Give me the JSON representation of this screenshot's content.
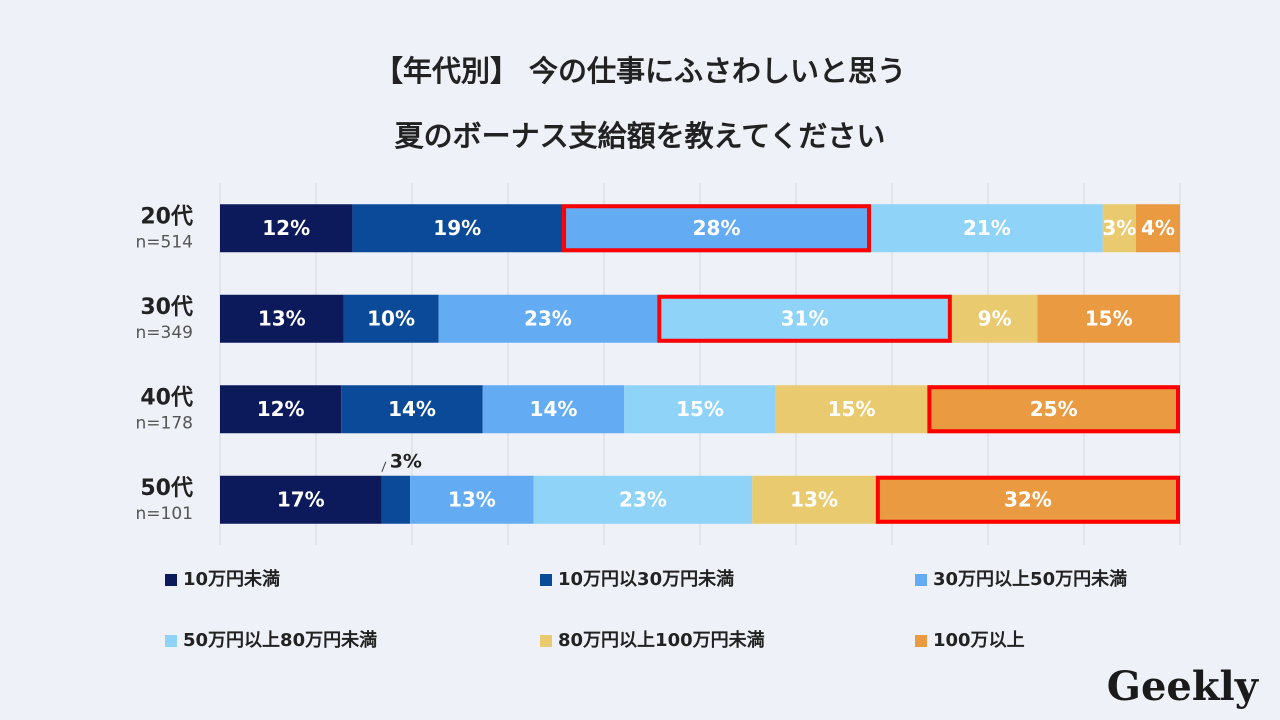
{
  "chart_data": {
    "type": "bar",
    "orientation": "horizontal",
    "stacking": "percent",
    "title": [
      "【年代別】 今の仕事にふさわしいと思う",
      "夏のボーナス支給額を教えてください"
    ],
    "categories": [
      "20代",
      "30代",
      "40代",
      "50代"
    ],
    "category_notes": [
      "n=514",
      "n=349",
      "n=178",
      "n=101"
    ],
    "series": [
      {
        "name": "10万円未満",
        "color": "#0c1a5c",
        "values": [
          12,
          13,
          12,
          17
        ],
        "value_labels": [
          "12%",
          "13%",
          "12%",
          "17%"
        ]
      },
      {
        "name": "10万円以30万円未満",
        "color": "#0b4a99",
        "values": [
          19,
          10,
          14,
          3
        ],
        "value_labels": [
          "19%",
          "10%",
          "14%",
          "3%"
        ]
      },
      {
        "name": "30万円以上50万円未満",
        "color": "#63acf4",
        "values": [
          28,
          23,
          14,
          13
        ],
        "value_labels": [
          "28%",
          "23%",
          "14%",
          "13%"
        ]
      },
      {
        "name": "50万円以上80万円未満",
        "color": "#8fd3f8",
        "values": [
          21,
          31,
          15,
          23
        ],
        "value_labels": [
          "21%",
          "31%",
          "15%",
          "23%"
        ]
      },
      {
        "name": "80万円以上100万円未満",
        "color": "#e9ca6e",
        "values": [
          3,
          9,
          15,
          13
        ],
        "value_labels": [
          "3%",
          "9%",
          "15%",
          "13%"
        ]
      },
      {
        "name": "100万以上",
        "color": "#ea9b41",
        "values": [
          4,
          15,
          25,
          32
        ],
        "value_labels": [
          "4%",
          "15%",
          "25%",
          "32%"
        ]
      }
    ],
    "highlight_series": [
      2,
      3,
      5,
      5
    ],
    "highlight_color": "#ff0000",
    "xlim": [
      0,
      100
    ],
    "xticks": [
      0,
      10,
      20,
      30,
      40,
      50,
      60,
      70,
      80,
      90,
      100
    ],
    "grid": true,
    "legend": "bottom"
  },
  "logo": "Geekly"
}
